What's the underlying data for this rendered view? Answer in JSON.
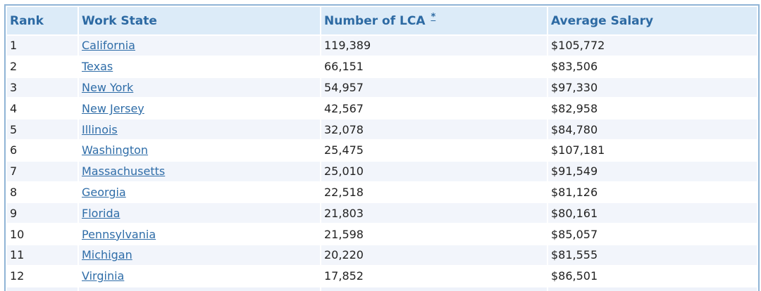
{
  "table": {
    "headers": {
      "rank": "Rank",
      "state": "Work State",
      "lca": "Number of LCA",
      "lca_note": "*",
      "salary": "Average Salary"
    },
    "rows": [
      {
        "rank": "1",
        "state": "California",
        "lca": "119,389",
        "salary": "$105,772"
      },
      {
        "rank": "2",
        "state": "Texas",
        "lca": "66,151",
        "salary": "$83,506"
      },
      {
        "rank": "3",
        "state": "New York",
        "lca": "54,957",
        "salary": "$97,330"
      },
      {
        "rank": "4",
        "state": "New Jersey",
        "lca": "42,567",
        "salary": "$82,958"
      },
      {
        "rank": "5",
        "state": "Illinois",
        "lca": "32,078",
        "salary": "$84,780"
      },
      {
        "rank": "6",
        "state": "Washington",
        "lca": "25,475",
        "salary": "$107,181"
      },
      {
        "rank": "7",
        "state": "Massachusetts",
        "lca": "25,010",
        "salary": "$91,549"
      },
      {
        "rank": "8",
        "state": "Georgia",
        "lca": "22,518",
        "salary": "$81,126"
      },
      {
        "rank": "9",
        "state": "Florida",
        "lca": "21,803",
        "salary": "$80,161"
      },
      {
        "rank": "10",
        "state": "Pennsylvania",
        "lca": "21,598",
        "salary": "$85,057"
      },
      {
        "rank": "11",
        "state": "Michigan",
        "lca": "20,220",
        "salary": "$81,555"
      },
      {
        "rank": "12",
        "state": "Virginia",
        "lca": "17,852",
        "salary": "$86,501"
      }
    ]
  },
  "colors": {
    "header_bg": "#dcebf8",
    "header_text": "#2d6aa3",
    "link": "#2f6da8",
    "stripe": "#f2f5fb",
    "border": "#8fb4d6"
  }
}
